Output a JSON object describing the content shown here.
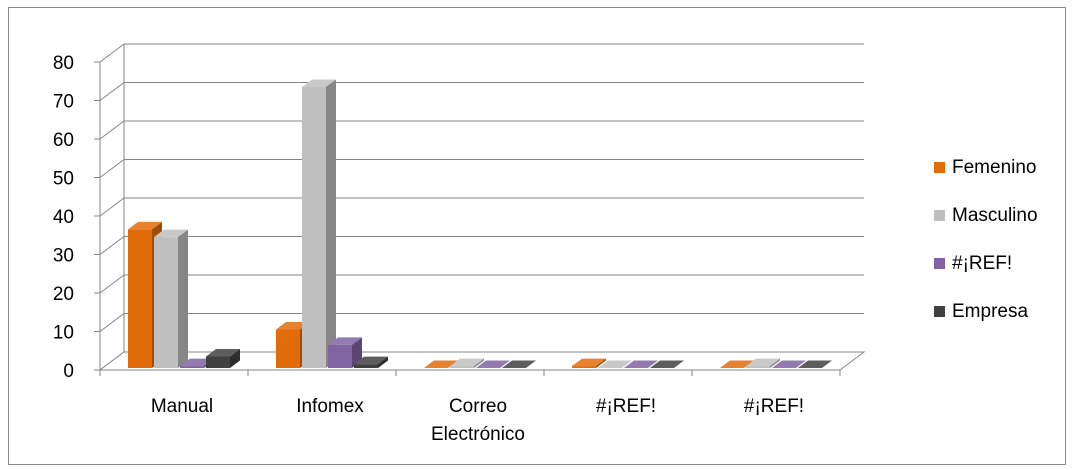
{
  "chart_data": {
    "type": "bar",
    "subtype": "3d-clustered-column",
    "title": "",
    "xlabel": "",
    "ylabel": "",
    "ylim": [
      0,
      80
    ],
    "yticks": [
      0,
      10,
      20,
      30,
      40,
      50,
      60,
      70,
      80
    ],
    "grid": true,
    "legend_position": "right",
    "categories": [
      [
        "Manual"
      ],
      [
        "Infomex"
      ],
      [
        "Correo",
        "Electrónico"
      ],
      [
        "#¡REF!"
      ],
      [
        "#¡REF!"
      ]
    ],
    "series": [
      {
        "name": "Femenino",
        "color": "#E36C0A",
        "values": [
          36,
          10,
          0,
          0.5,
          0
        ]
      },
      {
        "name": "Masculino",
        "color": "#BFBFBF",
        "values": [
          34,
          73,
          0.5,
          0,
          0.5
        ]
      },
      {
        "name": "#¡REF!",
        "color": "#8064A2",
        "values": [
          0.5,
          6,
          0,
          0,
          0
        ]
      },
      {
        "name": "Empresa",
        "color": "#404040",
        "values": [
          3,
          1,
          0,
          0,
          0
        ]
      }
    ]
  }
}
